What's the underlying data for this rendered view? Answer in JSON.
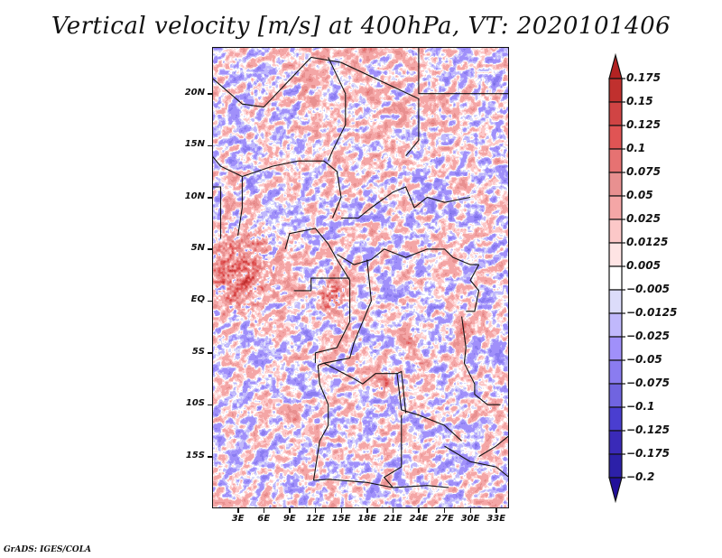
{
  "title": "Vertical velocity [m/s] at 400hPa, VT: 2020101406",
  "footer": "GrADS: IGES/COLA",
  "chart_data": {
    "type": "heatmap",
    "title": "Vertical velocity [m/s] at 400hPa, VT: 2020101406",
    "variable": "Vertical velocity",
    "units": "m/s",
    "level": "400hPa",
    "valid_time": "2020101406",
    "map_projection": "lat-lon",
    "region": "Central Africa",
    "xlim_deg_east": [
      0,
      34.5
    ],
    "ylim_deg_north": [
      -20,
      24.5
    ],
    "x_ticks": [
      {
        "value": 3,
        "label": "3E"
      },
      {
        "value": 6,
        "label": "6E"
      },
      {
        "value": 9,
        "label": "9E"
      },
      {
        "value": 12,
        "label": "12E"
      },
      {
        "value": 15,
        "label": "15E"
      },
      {
        "value": 18,
        "label": "18E"
      },
      {
        "value": 21,
        "label": "21E"
      },
      {
        "value": 24,
        "label": "24E"
      },
      {
        "value": 27,
        "label": "27E"
      },
      {
        "value": 30,
        "label": "30E"
      },
      {
        "value": 33,
        "label": "33E"
      }
    ],
    "y_ticks": [
      {
        "value": 20,
        "label": "20N"
      },
      {
        "value": 15,
        "label": "15N"
      },
      {
        "value": 10,
        "label": "10N"
      },
      {
        "value": 5,
        "label": "5N"
      },
      {
        "value": 0,
        "label": "EQ"
      },
      {
        "value": -5,
        "label": "5S"
      },
      {
        "value": -10,
        "label": "10S"
      },
      {
        "value": -15,
        "label": "15S"
      }
    ],
    "colorbar": {
      "orientation": "vertical",
      "placement": "right",
      "extend": "both",
      "levels": [
        {
          "label": "0.175",
          "value": 0.175
        },
        {
          "label": "0.15",
          "value": 0.15
        },
        {
          "label": "0.125",
          "value": 0.125
        },
        {
          "label": "0.1",
          "value": 0.1
        },
        {
          "label": "0.075",
          "value": 0.075
        },
        {
          "label": "0.05",
          "value": 0.05
        },
        {
          "label": "0.025",
          "value": 0.025
        },
        {
          "label": "0.0125",
          "value": 0.0125
        },
        {
          "label": "0.005",
          "value": 0.005
        },
        {
          "label": "−0.005",
          "value": -0.005
        },
        {
          "label": "−0.0125",
          "value": -0.0125
        },
        {
          "label": "−0.025",
          "value": -0.025
        },
        {
          "label": "−0.05",
          "value": -0.05
        },
        {
          "label": "−0.075",
          "value": -0.075
        },
        {
          "label": "−0.1",
          "value": -0.1
        },
        {
          "label": "−0.125",
          "value": -0.125
        },
        {
          "label": "−0.175",
          "value": -0.175
        },
        {
          "label": "−0.2",
          "value": -0.2
        }
      ],
      "colors_top_to_bottom": [
        "#b22222",
        "#c0302e",
        "#d04444",
        "#e05454",
        "#e67272",
        "#e89090",
        "#f4a6a6",
        "#fcc8c8",
        "#fee4e4",
        "#ffffff",
        "#dcdcfa",
        "#c0b8fc",
        "#a090fa",
        "#8a7cf0",
        "#7064e0",
        "#4a3ed0",
        "#3a2ab8",
        "#2c20a8",
        "#22109a"
      ]
    },
    "notable_features": [
      {
        "description": "Strong upward motion (red) band over Gulf of Guinea coast",
        "approx_lat": 3,
        "approx_lon": 3
      },
      {
        "description": "Convective cores near Gabon/Congo",
        "approx_lat": 0.5,
        "approx_lon": 14
      },
      {
        "description": "Scattered convective cores over DRC",
        "approx_lat": -8,
        "approx_lon": 20
      }
    ]
  }
}
